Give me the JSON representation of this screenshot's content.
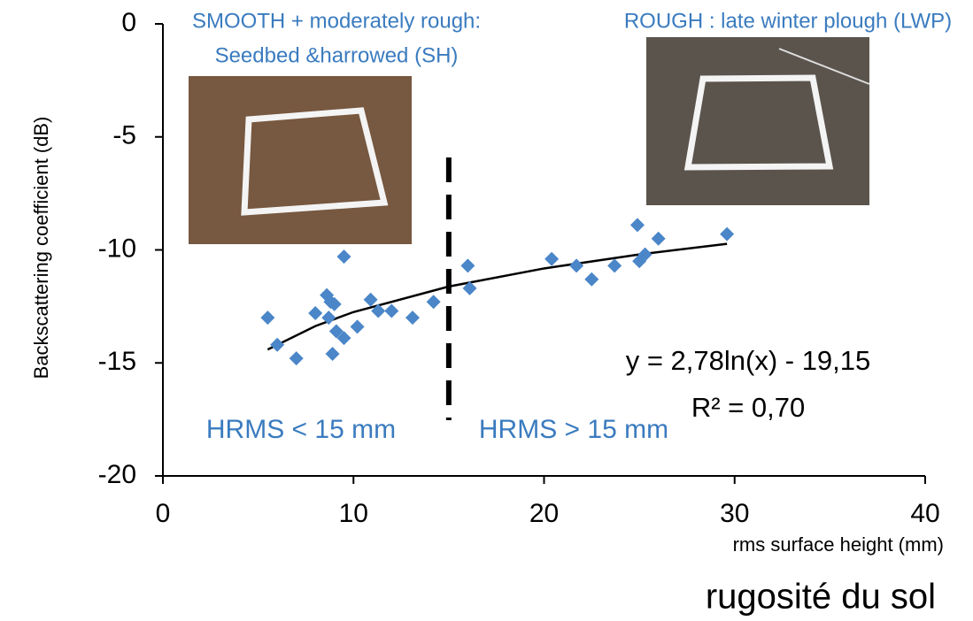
{
  "chart_data": {
    "type": "scatter",
    "x_label": "rms surface height (mm)",
    "y_label": "Backscattering coefficient (dB)",
    "xlim": [
      0,
      40
    ],
    "ylim": [
      -20,
      0
    ],
    "xticks": [
      0,
      10,
      20,
      30,
      40
    ],
    "yticks": [
      0,
      -5,
      -10,
      -15,
      -20
    ],
    "series": [
      {
        "color": "#4a86c8",
        "x": [
          5.5,
          6.0,
          7.0,
          8.0,
          8.6,
          8.8,
          8.7,
          8.9,
          9.0,
          9.1,
          9.5,
          9.5,
          10.2,
          10.9,
          11.3,
          12.0,
          13.1,
          14.2,
          16.0,
          16.1,
          20.4,
          21.7,
          22.5,
          23.7,
          24.9,
          25.0,
          25.3,
          26.0,
          29.6
        ],
        "values": [
          -13.0,
          -14.2,
          -14.8,
          -12.8,
          -12.0,
          -12.3,
          -13.0,
          -14.6,
          -12.4,
          -13.6,
          -13.9,
          -10.3,
          -13.4,
          -12.2,
          -12.7,
          -12.7,
          -13.0,
          -12.3,
          -10.7,
          -11.7,
          -10.4,
          -10.7,
          -11.3,
          -10.7,
          -8.9,
          -10.5,
          -10.2,
          -9.5,
          -9.3
        ]
      }
    ],
    "trendline": {
      "color": "#000000",
      "x": [
        5.5,
        8,
        10,
        15,
        20,
        25,
        29.6
      ],
      "values": [
        -14.41,
        -13.37,
        -12.75,
        -11.62,
        -10.82,
        -10.2,
        -9.73
      ]
    },
    "threshold_x": 15,
    "annotations": {
      "smooth_line1": "SMOOTH + moderately rough:",
      "smooth_line2": "Seedbed &harrowed (SH)",
      "rough": "ROUGH : late winter plough (LWP)",
      "left_zone": "HRMS < 15 mm",
      "right_zone": "HRMS > 15 mm",
      "equation": "y = 2,78ln(x) - 19,15",
      "r_squared": "R² = 0,70"
    },
    "footer": "rugosité du sol"
  }
}
